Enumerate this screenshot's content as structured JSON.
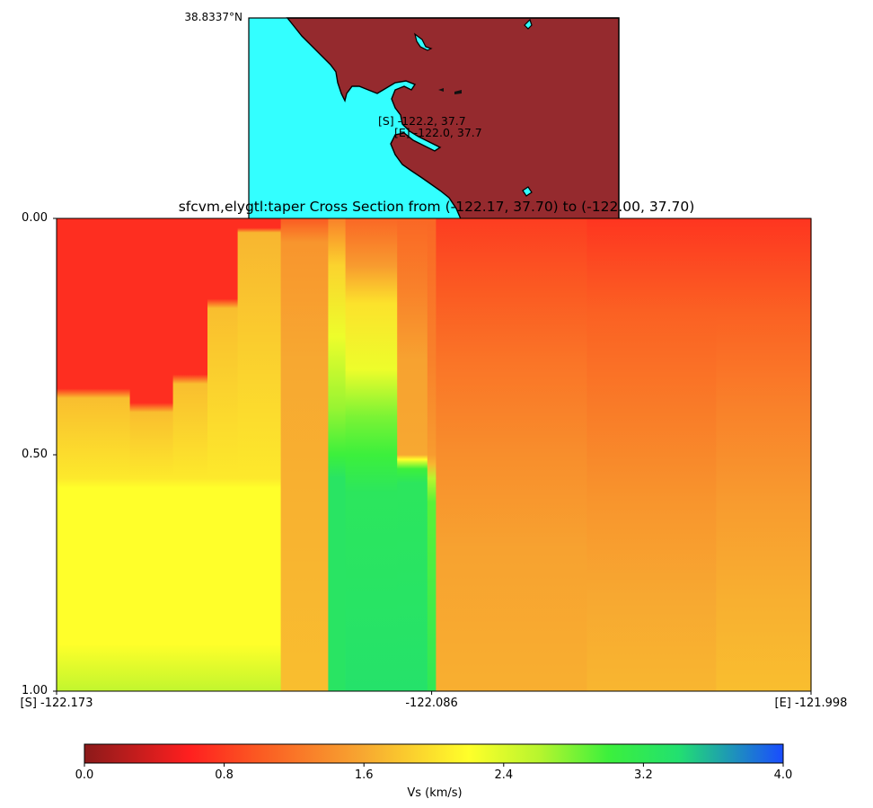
{
  "map": {
    "corner_label": "38.8337°N",
    "start_label": "[S] -122.2, 37.7",
    "end_label": "[E] -122.0, 37.7",
    "colors": {
      "ocean": "#33ffff",
      "land": "#952a2e"
    }
  },
  "chart_data": {
    "type": "heatmap",
    "title": "sfcvm,elygtl:taper Cross Section from (-122.17, 37.70) to (-122.00, 37.70)",
    "x_tick_labels": [
      "[S] -122.173",
      "-122.086",
      "[E] -121.998"
    ],
    "x_ticks": [
      -122.173,
      -122.086,
      -121.998
    ],
    "xlim": [
      -122.173,
      -121.998
    ],
    "y_tick_labels": [
      "0.00",
      "0.50",
      "1.00"
    ],
    "y_ticks": [
      0.0,
      0.5,
      1.0
    ],
    "ylim": [
      0.0,
      1.0
    ],
    "y_inverted": true,
    "colorbar": {
      "label": "Vs (km/s)",
      "range": [
        0.0,
        4.0
      ],
      "tick_labels": [
        "0.0",
        "0.8",
        "1.6",
        "2.4",
        "3.2",
        "4.0"
      ],
      "ticks": [
        0.0,
        0.8,
        1.6,
        2.4,
        3.2,
        4.0
      ],
      "colormap": [
        {
          "v": 0.0,
          "c": "#8b1a1a"
        },
        {
          "v": 0.6,
          "c": "#ff1f1f"
        },
        {
          "v": 1.0,
          "c": "#fb5a22"
        },
        {
          "v": 1.6,
          "c": "#f7a831"
        },
        {
          "v": 2.2,
          "c": "#ffff2a"
        },
        {
          "v": 2.6,
          "c": "#b8f52e"
        },
        {
          "v": 3.0,
          "c": "#3cf03c"
        },
        {
          "v": 3.4,
          "c": "#22e070"
        },
        {
          "v": 4.0,
          "c": "#1a4cff"
        }
      ]
    },
    "columns": [
      {
        "x0": -122.173,
        "x1": -122.156,
        "profile": [
          [
            0.0,
            0.7
          ],
          [
            0.36,
            0.7
          ],
          [
            0.38,
            1.75
          ],
          [
            0.55,
            2.05
          ],
          [
            0.57,
            2.2
          ],
          [
            0.9,
            2.2
          ],
          [
            1.0,
            2.55
          ]
        ]
      },
      {
        "x0": -122.156,
        "x1": -122.146,
        "profile": [
          [
            0.0,
            0.7
          ],
          [
            0.39,
            0.7
          ],
          [
            0.41,
            1.75
          ],
          [
            0.55,
            2.05
          ],
          [
            0.57,
            2.2
          ],
          [
            0.9,
            2.2
          ],
          [
            1.0,
            2.55
          ]
        ]
      },
      {
        "x0": -122.146,
        "x1": -122.138,
        "profile": [
          [
            0.0,
            0.7
          ],
          [
            0.33,
            0.7
          ],
          [
            0.35,
            1.75
          ],
          [
            0.55,
            2.05
          ],
          [
            0.57,
            2.2
          ],
          [
            0.9,
            2.2
          ],
          [
            1.0,
            2.55
          ]
        ]
      },
      {
        "x0": -122.138,
        "x1": -122.131,
        "profile": [
          [
            0.0,
            0.7
          ],
          [
            0.17,
            0.7
          ],
          [
            0.19,
            1.75
          ],
          [
            0.55,
            2.05
          ],
          [
            0.57,
            2.2
          ],
          [
            0.9,
            2.2
          ],
          [
            1.0,
            2.55
          ]
        ]
      },
      {
        "x0": -122.131,
        "x1": -122.121,
        "profile": [
          [
            0.0,
            0.7
          ],
          [
            0.02,
            0.7
          ],
          [
            0.03,
            1.7
          ],
          [
            0.55,
            2.05
          ],
          [
            0.57,
            2.2
          ],
          [
            0.9,
            2.2
          ],
          [
            1.0,
            2.55
          ]
        ]
      },
      {
        "x0": -122.121,
        "x1": -122.11,
        "profile": [
          [
            0.0,
            1.0
          ],
          [
            0.05,
            1.45
          ],
          [
            0.3,
            1.6
          ],
          [
            1.0,
            1.75
          ]
        ]
      },
      {
        "x0": -122.11,
        "x1": -122.106,
        "profile": [
          [
            0.0,
            1.3
          ],
          [
            0.1,
            1.9
          ],
          [
            0.25,
            2.3
          ],
          [
            0.4,
            2.7
          ],
          [
            0.5,
            3.0
          ],
          [
            0.55,
            3.3
          ],
          [
            1.0,
            3.3
          ]
        ]
      },
      {
        "x0": -122.106,
        "x1": -122.094,
        "profile": [
          [
            0.0,
            1.1
          ],
          [
            0.1,
            1.5
          ],
          [
            0.18,
            2.0
          ],
          [
            0.32,
            2.3
          ],
          [
            0.42,
            2.8
          ],
          [
            0.5,
            3.0
          ],
          [
            0.58,
            3.25
          ],
          [
            1.0,
            3.35
          ]
        ]
      },
      {
        "x0": -122.094,
        "x1": -122.087,
        "profile": [
          [
            0.0,
            1.1
          ],
          [
            0.15,
            1.3
          ],
          [
            0.3,
            1.55
          ],
          [
            0.5,
            1.6
          ],
          [
            0.51,
            2.2
          ],
          [
            0.53,
            3.0
          ],
          [
            0.56,
            3.25
          ],
          [
            1.0,
            3.35
          ]
        ]
      },
      {
        "x0": -122.087,
        "x1": -122.085,
        "profile": [
          [
            0.0,
            1.1
          ],
          [
            0.3,
            1.3
          ],
          [
            0.5,
            1.5
          ],
          [
            0.52,
            1.7
          ],
          [
            0.55,
            2.6
          ],
          [
            0.6,
            2.9
          ],
          [
            1.0,
            3.2
          ]
        ]
      },
      {
        "x0": -122.085,
        "x1": -122.05,
        "profile": [
          [
            0.0,
            0.8
          ],
          [
            0.15,
            1.0
          ],
          [
            0.3,
            1.2
          ],
          [
            0.5,
            1.4
          ],
          [
            0.7,
            1.55
          ],
          [
            1.0,
            1.65
          ]
        ]
      },
      {
        "x0": -122.05,
        "x1": -122.02,
        "profile": [
          [
            0.0,
            0.75
          ],
          [
            0.2,
            1.05
          ],
          [
            0.4,
            1.25
          ],
          [
            0.6,
            1.45
          ],
          [
            0.8,
            1.6
          ],
          [
            1.0,
            1.7
          ]
        ]
      },
      {
        "x0": -122.02,
        "x1": -121.998,
        "profile": [
          [
            0.0,
            0.75
          ],
          [
            0.2,
            1.05
          ],
          [
            0.4,
            1.3
          ],
          [
            0.6,
            1.5
          ],
          [
            0.8,
            1.65
          ],
          [
            1.0,
            1.75
          ]
        ]
      }
    ]
  }
}
